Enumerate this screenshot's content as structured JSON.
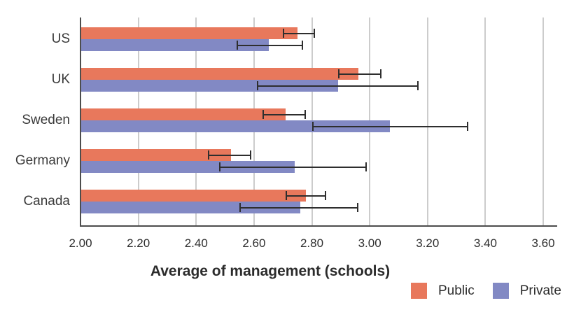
{
  "chart_data": {
    "type": "bar",
    "orientation": "horizontal",
    "title": "",
    "xlabel": "Average of management (schools)",
    "ylabel": "",
    "categories": [
      "US",
      "UK",
      "Sweden",
      "Germany",
      "Canada"
    ],
    "series": [
      {
        "name": "Public",
        "color": "#E8785C",
        "values": [
          2.75,
          2.96,
          2.71,
          2.52,
          2.78
        ],
        "error_low": [
          2.7,
          2.89,
          2.63,
          2.44,
          2.71
        ],
        "error_high": [
          2.81,
          3.04,
          2.78,
          2.59,
          2.85
        ]
      },
      {
        "name": "Private",
        "color": "#8289C4",
        "values": [
          2.65,
          2.89,
          3.07,
          2.74,
          2.76
        ],
        "error_low": [
          2.54,
          2.61,
          2.8,
          2.48,
          2.55
        ],
        "error_high": [
          2.77,
          3.17,
          3.34,
          2.99,
          2.96
        ]
      }
    ],
    "xlim": [
      2.0,
      3.6
    ],
    "xticks": [
      "2.00",
      "2.20",
      "2.40",
      "2.60",
      "2.80",
      "3.00",
      "3.20",
      "3.40",
      "3.60"
    ],
    "grid": true,
    "error_bars": true,
    "legend_position": "bottom-right"
  },
  "colors": {
    "public": "#E8785C",
    "private": "#8289C4",
    "gridline": "#cccccc",
    "axis": "#4d4d4d",
    "error_bar": "#2e2e2e",
    "text": "#2b2b2b"
  }
}
